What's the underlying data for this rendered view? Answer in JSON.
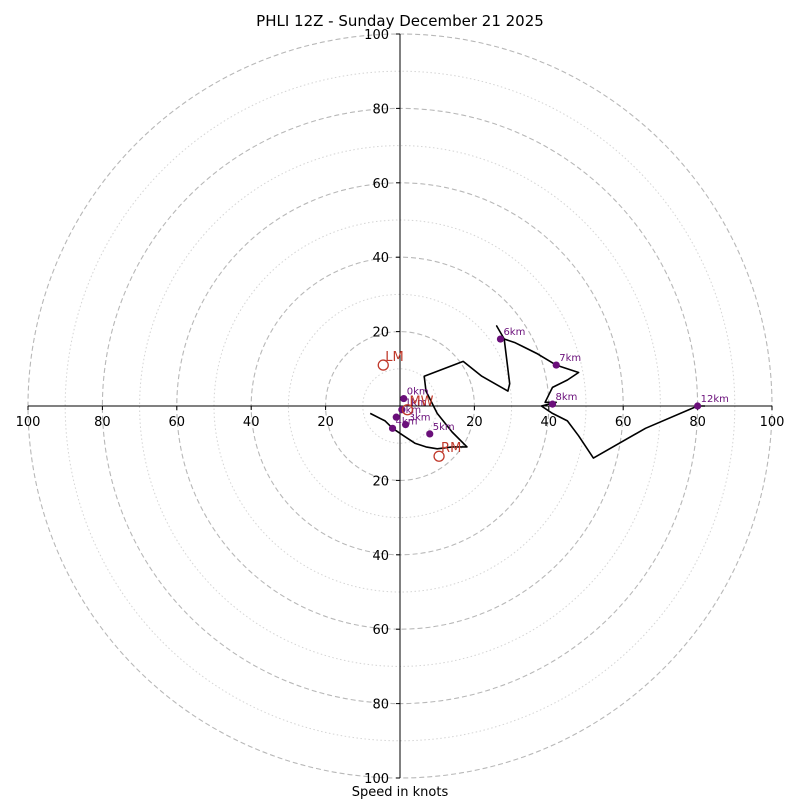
{
  "chart_data": {
    "type": "line",
    "title": "PHLI 12Z - Sunday December 21 2025",
    "xlabel": "Speed in knots",
    "range": 100,
    "rings_major": [
      20,
      40,
      60,
      80,
      100
    ],
    "rings_minor": [
      10,
      30,
      50,
      70,
      90
    ],
    "tick_values": [
      20,
      40,
      60,
      80,
      100
    ],
    "x_tick_labels": [
      "100",
      "80",
      "60",
      "40",
      "20",
      "20",
      "40",
      "60",
      "80",
      "100"
    ],
    "y_tick_labels": [
      "100",
      "80",
      "60",
      "40",
      "20",
      "20",
      "40",
      "60",
      "80",
      "100"
    ],
    "trace_color": "#000000",
    "marker_color": "#6a0f7a",
    "motion_color": "#c0392b",
    "trace": [
      [
        -8,
        -2
      ],
      [
        -4,
        -4
      ],
      [
        -2,
        -6
      ],
      [
        1,
        -8
      ],
      [
        4,
        -10
      ],
      [
        7,
        -11
      ],
      [
        10,
        -11.5
      ],
      [
        14,
        -11
      ],
      [
        18,
        -11
      ],
      [
        14,
        -7
      ],
      [
        10,
        -2
      ],
      [
        7,
        4
      ],
      [
        6.5,
        8
      ],
      [
        17,
        12
      ],
      [
        22,
        8
      ],
      [
        29,
        4
      ],
      [
        29.5,
        6
      ],
      [
        28,
        18
      ],
      [
        26,
        21.5
      ],
      [
        28,
        18
      ],
      [
        31,
        17
      ],
      [
        33,
        16
      ],
      [
        37,
        14
      ],
      [
        42,
        11
      ],
      [
        48,
        9
      ],
      [
        45,
        7
      ],
      [
        41,
        5
      ],
      [
        40,
        3
      ],
      [
        39,
        1
      ],
      [
        42,
        1
      ],
      [
        38,
        0
      ],
      [
        41,
        -2
      ],
      [
        45,
        -4
      ],
      [
        48,
        -8
      ],
      [
        52,
        -14
      ],
      [
        66,
        -6
      ],
      [
        80,
        0
      ],
      [
        82,
        0
      ]
    ],
    "height_markers": [
      {
        "x": 1,
        "y": 2,
        "label": "0km"
      },
      {
        "x": 0.5,
        "y": -1,
        "label": "1km"
      },
      {
        "x": -1,
        "y": -3,
        "label": "2km"
      },
      {
        "x": 1.5,
        "y": -5,
        "label": "3km"
      },
      {
        "x": -2,
        "y": -6,
        "label": "4km"
      },
      {
        "x": 8,
        "y": -7.5,
        "label": "5km"
      },
      {
        "x": 27,
        "y": 18,
        "label": "6km"
      },
      {
        "x": 42,
        "y": 11,
        "label": "7km"
      },
      {
        "x": 41,
        "y": 0.5,
        "label": "8km"
      },
      {
        "x": 80,
        "y": 0,
        "label": "12km"
      }
    ],
    "storm_motion": [
      {
        "label": "LM",
        "x": -4.5,
        "y": 11
      },
      {
        "label": "MW",
        "x": 2,
        "y": -1
      },
      {
        "label": "RM",
        "x": 10.5,
        "y": -13.5
      }
    ]
  }
}
